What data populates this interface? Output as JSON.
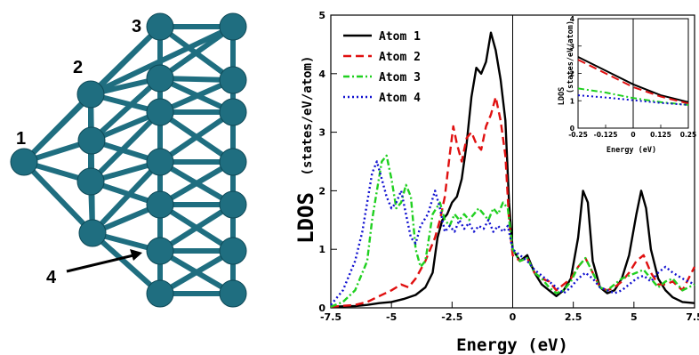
{
  "structure": {
    "atom_labels": [
      "1",
      "2",
      "3",
      "4"
    ],
    "atom_color": "#1f6e80",
    "bond_color": "#1f6e80"
  },
  "chart_data": [
    {
      "type": "line",
      "title": "",
      "xlabel": "Energy (eV)",
      "ylabel": "LDOS",
      "ylabel_sub": "(states/eV/atom)",
      "xlim": [
        -7.5,
        7.5
      ],
      "ylim": [
        0,
        5
      ],
      "xticks": [
        -7.5,
        -5,
        -2.5,
        0,
        2.5,
        5,
        7.5
      ],
      "xtick_labels": [
        "-7.5",
        "-5",
        "-2.5",
        "0",
        "2.5",
        "5",
        "7.5"
      ],
      "yticks": [
        0,
        1,
        2,
        3,
        4,
        5
      ],
      "ytick_labels": [
        "0",
        "1",
        "2",
        "3",
        "4",
        "5"
      ],
      "vline_x": 0,
      "legend_position": "top-left",
      "series": [
        {
          "name": "Atom 1",
          "color": "#000000",
          "dash": "solid",
          "x": [
            -7.5,
            -6.5,
            -6,
            -5.5,
            -5,
            -4.5,
            -4,
            -3.6,
            -3.3,
            -3.1,
            -2.9,
            -2.7,
            -2.5,
            -2.3,
            -2.1,
            -1.9,
            -1.7,
            -1.5,
            -1.3,
            -1.1,
            -0.9,
            -0.7,
            -0.5,
            -0.3,
            -0.15,
            0,
            0.3,
            0.6,
            0.9,
            1.2,
            1.5,
            1.8,
            2.1,
            2.4,
            2.7,
            2.9,
            3.1,
            3.3,
            3.6,
            3.9,
            4.2,
            4.5,
            4.8,
            5.1,
            5.3,
            5.5,
            5.7,
            6,
            6.3,
            6.6,
            7,
            7.5
          ],
          "y": [
            0.02,
            0.03,
            0.05,
            0.08,
            0.1,
            0.15,
            0.22,
            0.35,
            0.6,
            1.2,
            1.5,
            1.6,
            1.8,
            1.9,
            2.2,
            2.8,
            3.6,
            4.1,
            4.0,
            4.2,
            4.7,
            4.4,
            3.9,
            3.2,
            1.8,
            1.0,
            0.8,
            0.9,
            0.6,
            0.4,
            0.3,
            0.2,
            0.3,
            0.5,
            1.2,
            2.0,
            1.8,
            0.8,
            0.35,
            0.25,
            0.3,
            0.5,
            0.9,
            1.6,
            2.0,
            1.7,
            1.0,
            0.5,
            0.3,
            0.18,
            0.1,
            0.08
          ]
        },
        {
          "name": "Atom 2",
          "color": "#e01010",
          "dash": "dashed",
          "x": [
            -7.5,
            -6.5,
            -6,
            -5.5,
            -5,
            -4.6,
            -4.3,
            -4,
            -3.6,
            -3.2,
            -3,
            -2.8,
            -2.6,
            -2.45,
            -2.3,
            -2.1,
            -1.9,
            -1.7,
            -1.5,
            -1.3,
            -1.1,
            -0.9,
            -0.7,
            -0.5,
            -0.3,
            -0.15,
            0,
            0.3,
            0.6,
            0.9,
            1.2,
            1.5,
            1.8,
            2.1,
            2.4,
            2.7,
            3,
            3.3,
            3.6,
            3.9,
            4.2,
            4.5,
            4.8,
            5.1,
            5.4,
            5.7,
            6,
            6.3,
            6.6,
            7,
            7.5
          ],
          "y": [
            0.02,
            0.05,
            0.1,
            0.2,
            0.3,
            0.4,
            0.35,
            0.5,
            0.8,
            1.2,
            1.5,
            1.9,
            2.6,
            3.1,
            2.8,
            2.5,
            2.9,
            3.0,
            2.8,
            2.7,
            3.1,
            3.3,
            3.6,
            3.2,
            2.6,
            1.5,
            0.9,
            0.8,
            0.85,
            0.6,
            0.5,
            0.45,
            0.3,
            0.4,
            0.5,
            0.7,
            0.85,
            0.6,
            0.35,
            0.3,
            0.35,
            0.45,
            0.6,
            0.8,
            0.9,
            0.6,
            0.4,
            0.4,
            0.45,
            0.3,
            0.7
          ]
        },
        {
          "name": "Atom 3",
          "color": "#20d020",
          "dash": "dashdot",
          "x": [
            -7.5,
            -7,
            -6.5,
            -6,
            -5.8,
            -5.6,
            -5.4,
            -5.2,
            -5,
            -4.8,
            -4.6,
            -4.4,
            -4.2,
            -4,
            -3.8,
            -3.6,
            -3.3,
            -3,
            -2.8,
            -2.6,
            -2.4,
            -2.2,
            -2,
            -1.8,
            -1.6,
            -1.4,
            -1.2,
            -1,
            -0.8,
            -0.6,
            -0.4,
            -0.2,
            0,
            0.3,
            0.6,
            0.9,
            1.2,
            1.5,
            1.8,
            2.1,
            2.4,
            2.7,
            3,
            3.3,
            3.6,
            3.9,
            4.2,
            4.5,
            4.8,
            5.1,
            5.4,
            5.7,
            6,
            6.3,
            6.6,
            7,
            7.5
          ],
          "y": [
            0.02,
            0.1,
            0.3,
            0.8,
            1.5,
            2.0,
            2.5,
            2.6,
            2.2,
            1.7,
            1.8,
            2.1,
            1.9,
            1.0,
            0.7,
            0.8,
            1.6,
            1.8,
            1.5,
            1.4,
            1.6,
            1.5,
            1.6,
            1.5,
            1.6,
            1.7,
            1.6,
            1.5,
            1.7,
            1.6,
            1.8,
            1.7,
            1.0,
            0.8,
            0.85,
            0.6,
            0.5,
            0.35,
            0.25,
            0.3,
            0.45,
            0.7,
            0.85,
            0.6,
            0.35,
            0.3,
            0.4,
            0.5,
            0.55,
            0.6,
            0.65,
            0.5,
            0.35,
            0.45,
            0.5,
            0.3,
            0.4
          ]
        },
        {
          "name": "Atom 4",
          "color": "#1010d0",
          "dash": "dotted",
          "x": [
            -7.5,
            -7,
            -6.5,
            -6.2,
            -6,
            -5.8,
            -5.6,
            -5.4,
            -5.2,
            -5,
            -4.8,
            -4.6,
            -4.4,
            -4.2,
            -4,
            -3.8,
            -3.5,
            -3.2,
            -3,
            -2.8,
            -2.6,
            -2.4,
            -2.2,
            -2,
            -1.8,
            -1.6,
            -1.4,
            -1.2,
            -1,
            -0.8,
            -0.6,
            -0.4,
            -0.2,
            0,
            0.3,
            0.6,
            0.9,
            1.2,
            1.5,
            1.8,
            2.1,
            2.4,
            2.7,
            3,
            3.3,
            3.6,
            3.9,
            4.2,
            4.5,
            4.8,
            5.1,
            5.4,
            5.7,
            6,
            6.3,
            6.6,
            7,
            7.5
          ],
          "y": [
            0.05,
            0.3,
            0.8,
            1.3,
            1.8,
            2.3,
            2.5,
            2.2,
            1.9,
            1.7,
            1.8,
            2.0,
            1.6,
            1.2,
            1.1,
            1.4,
            1.6,
            2.0,
            1.7,
            1.3,
            1.4,
            1.3,
            1.5,
            1.35,
            1.45,
            1.3,
            1.4,
            1.35,
            1.5,
            1.3,
            1.4,
            1.3,
            1.4,
            1.0,
            0.9,
            0.8,
            0.65,
            0.55,
            0.45,
            0.35,
            0.25,
            0.35,
            0.5,
            0.6,
            0.5,
            0.35,
            0.3,
            0.25,
            0.3,
            0.4,
            0.5,
            0.55,
            0.45,
            0.6,
            0.7,
            0.6,
            0.5,
            0.4
          ]
        }
      ]
    },
    {
      "type": "line",
      "title": "",
      "xlabel": "Energy (eV)",
      "ylabel": "LDOS",
      "ylabel_sub": "(states/eV/atom)",
      "xlim": [
        -0.25,
        0.25
      ],
      "ylim": [
        0,
        4
      ],
      "xticks": [
        -0.25,
        -0.125,
        0,
        0.125,
        0.25
      ],
      "xtick_labels": [
        "-0.25",
        "-0.125",
        "0",
        "0.125",
        "0.25"
      ],
      "yticks": [
        0,
        1,
        2,
        3,
        4
      ],
      "ytick_labels": [
        "0",
        "1",
        "2",
        "3",
        "4"
      ],
      "vline_x": 0,
      "series": [
        {
          "name": "Atom 1",
          "color": "#000000",
          "dash": "solid",
          "x": [
            -0.25,
            -0.125,
            0,
            0.125,
            0.25
          ],
          "y": [
            2.6,
            2.1,
            1.6,
            1.2,
            0.95
          ]
        },
        {
          "name": "Atom 2",
          "color": "#e01010",
          "dash": "dashed",
          "x": [
            -0.25,
            -0.125,
            0,
            0.125,
            0.25
          ],
          "y": [
            2.5,
            2.0,
            1.5,
            1.15,
            0.9
          ]
        },
        {
          "name": "Atom 3",
          "color": "#20d020",
          "dash": "dashdot",
          "x": [
            -0.25,
            -0.125,
            0,
            0.125,
            0.25
          ],
          "y": [
            1.45,
            1.3,
            1.1,
            0.95,
            0.85
          ]
        },
        {
          "name": "Atom 4",
          "color": "#1010d0",
          "dash": "dotted",
          "x": [
            -0.25,
            -0.125,
            0,
            0.125,
            0.25
          ],
          "y": [
            1.2,
            1.12,
            1.02,
            0.92,
            0.85
          ]
        }
      ]
    }
  ]
}
